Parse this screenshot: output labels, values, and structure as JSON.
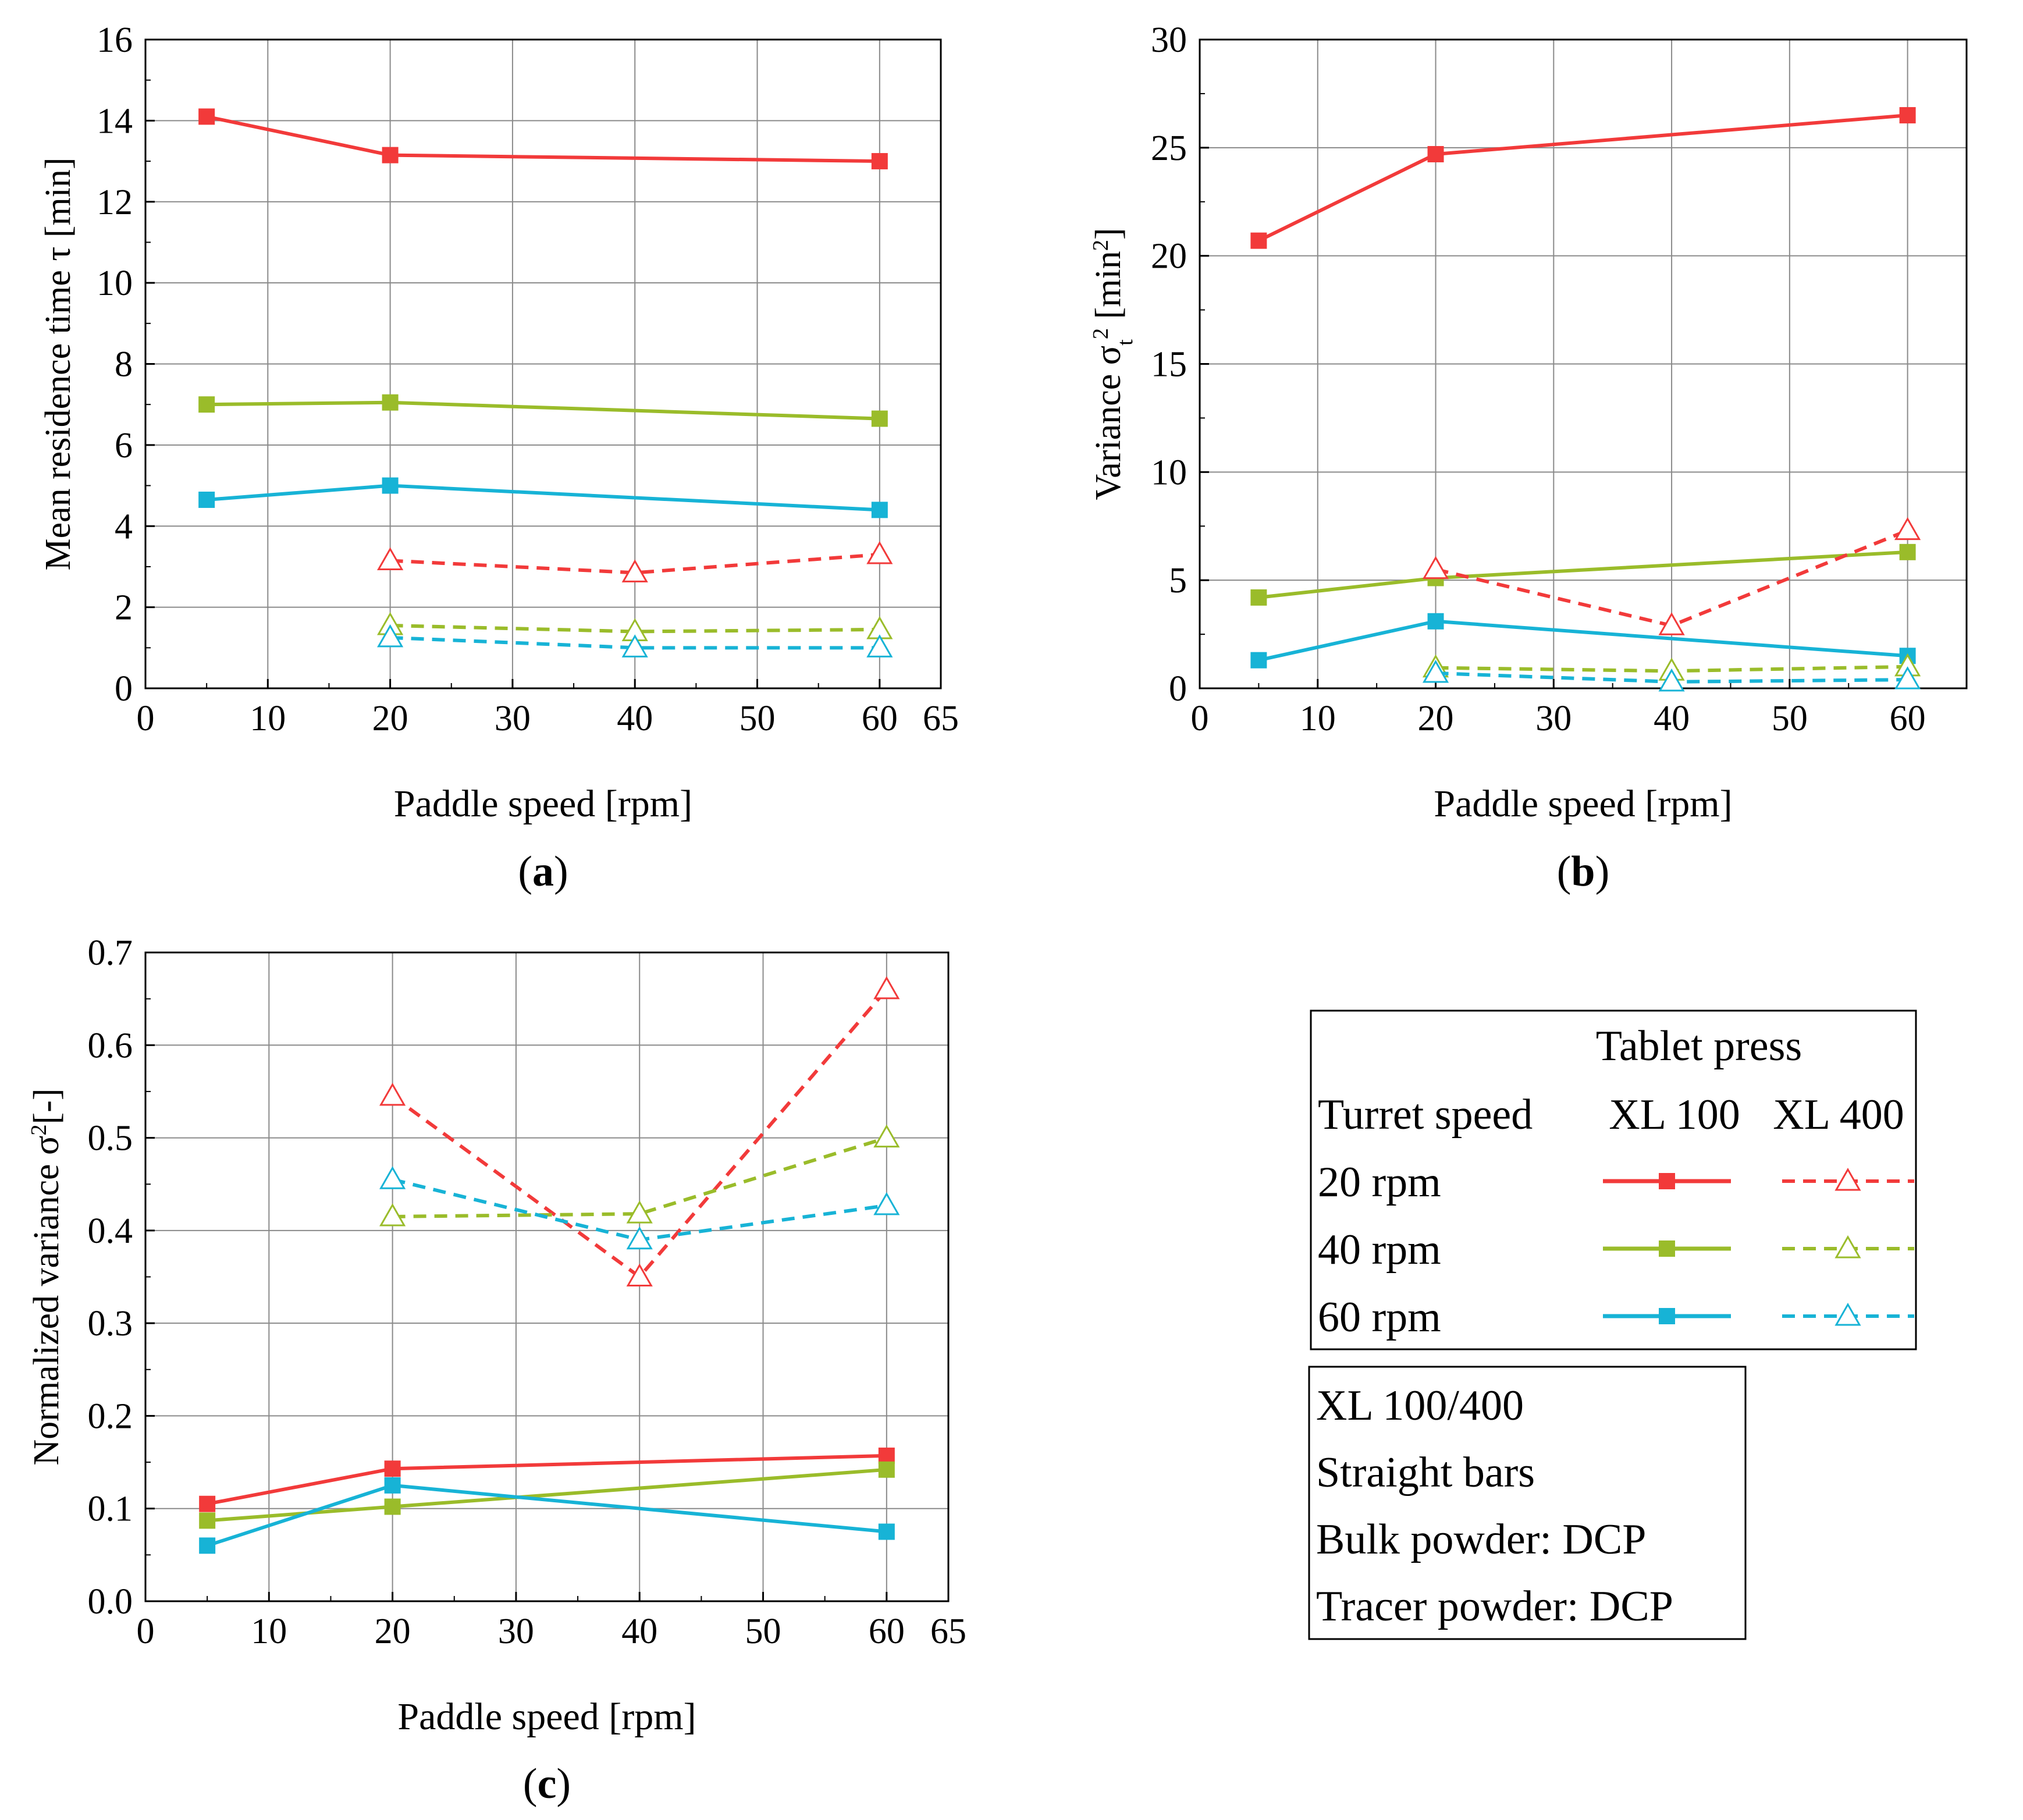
{
  "chart_data": [
    {
      "id": "a",
      "type": "line",
      "panel_label": "a",
      "xlabel": "Paddle speed [rpm]",
      "ylabel": "Mean residence time τ [min]",
      "xlim": [
        0,
        65
      ],
      "ylim": [
        0,
        16
      ],
      "xticks": [
        0,
        10,
        20,
        30,
        40,
        50,
        60,
        65
      ],
      "yticks": [
        0,
        2,
        4,
        6,
        8,
        10,
        12,
        14,
        16
      ],
      "ytick_decimals": 0,
      "grid": true,
      "series": [
        {
          "name": "20 rpm XL 100",
          "press": "XL 100",
          "turret": "20 rpm",
          "color": "#f23a3a",
          "dash": false,
          "marker": "square",
          "x": [
            5,
            20,
            60
          ],
          "y": [
            14.1,
            13.15,
            13.0
          ]
        },
        {
          "name": "40 rpm XL 100",
          "press": "XL 100",
          "turret": "40 rpm",
          "color": "#9abc2a",
          "dash": false,
          "marker": "square",
          "x": [
            5,
            20,
            60
          ],
          "y": [
            7.0,
            7.05,
            6.65
          ]
        },
        {
          "name": "60 rpm XL 100",
          "press": "XL 100",
          "turret": "60 rpm",
          "color": "#17b3d6",
          "dash": false,
          "marker": "square",
          "x": [
            5,
            20,
            60
          ],
          "y": [
            4.65,
            5.0,
            4.4
          ]
        },
        {
          "name": "20 rpm XL 400",
          "press": "XL 400",
          "turret": "20 rpm",
          "color": "#f23a3a",
          "dash": true,
          "marker": "triangle",
          "x": [
            20,
            40,
            60
          ],
          "y": [
            3.15,
            2.85,
            3.3
          ]
        },
        {
          "name": "40 rpm XL 400",
          "press": "XL 400",
          "turret": "40 rpm",
          "color": "#9abc2a",
          "dash": true,
          "marker": "triangle",
          "x": [
            20,
            40,
            60
          ],
          "y": [
            1.55,
            1.4,
            1.45
          ]
        },
        {
          "name": "60 rpm XL 400",
          "press": "XL 400",
          "turret": "60 rpm",
          "color": "#17b3d6",
          "dash": true,
          "marker": "triangle",
          "x": [
            20,
            40,
            60
          ],
          "y": [
            1.25,
            1.0,
            1.0
          ]
        }
      ]
    },
    {
      "id": "b",
      "type": "line",
      "panel_label": "b",
      "xlabel": "Paddle speed [rpm]",
      "ylabel": "Variance σt2 [min2]",
      "xlim": [
        0,
        65
      ],
      "ylim": [
        0,
        30
      ],
      "xticks": [
        0,
        10,
        20,
        30,
        40,
        50,
        60
      ],
      "yticks": [
        0,
        5,
        10,
        15,
        20,
        25,
        30
      ],
      "ytick_decimals": 0,
      "grid": true,
      "series": [
        {
          "name": "20 rpm XL 100",
          "press": "XL 100",
          "turret": "20 rpm",
          "color": "#f23a3a",
          "dash": false,
          "marker": "square",
          "x": [
            5,
            20,
            60
          ],
          "y": [
            20.7,
            24.7,
            26.5
          ]
        },
        {
          "name": "40 rpm XL 100",
          "press": "XL 100",
          "turret": "40 rpm",
          "color": "#9abc2a",
          "dash": false,
          "marker": "square",
          "x": [
            5,
            20,
            60
          ],
          "y": [
            4.2,
            5.1,
            6.3
          ]
        },
        {
          "name": "60 rpm XL 100",
          "press": "XL 100",
          "turret": "60 rpm",
          "color": "#17b3d6",
          "dash": false,
          "marker": "square",
          "x": [
            5,
            20,
            60
          ],
          "y": [
            1.3,
            3.1,
            1.5
          ]
        },
        {
          "name": "20 rpm XL 400",
          "press": "XL 400",
          "turret": "20 rpm",
          "color": "#f23a3a",
          "dash": true,
          "marker": "triangle",
          "x": [
            20,
            40,
            60
          ],
          "y": [
            5.5,
            2.9,
            7.3
          ]
        },
        {
          "name": "40 rpm XL 400",
          "press": "XL 400",
          "turret": "40 rpm",
          "color": "#9abc2a",
          "dash": true,
          "marker": "triangle",
          "x": [
            20,
            40,
            60
          ],
          "y": [
            0.95,
            0.8,
            1.0
          ]
        },
        {
          "name": "60 rpm XL 400",
          "press": "XL 400",
          "turret": "60 rpm",
          "color": "#17b3d6",
          "dash": true,
          "marker": "triangle",
          "x": [
            20,
            40,
            60
          ],
          "y": [
            0.7,
            0.3,
            0.4
          ]
        }
      ]
    },
    {
      "id": "c",
      "type": "line",
      "panel_label": "c",
      "xlabel": "Paddle speed [rpm]",
      "ylabel": "Normalized variance σ2[-]",
      "xlim": [
        0,
        65
      ],
      "ylim": [
        0,
        0.7
      ],
      "xticks": [
        0,
        10,
        20,
        30,
        40,
        50,
        60,
        65
      ],
      "yticks": [
        0.0,
        0.1,
        0.2,
        0.3,
        0.4,
        0.5,
        0.6,
        0.7
      ],
      "ytick_decimals": 1,
      "grid": true,
      "series": [
        {
          "name": "20 rpm XL 100",
          "press": "XL 100",
          "turret": "20 rpm",
          "color": "#f23a3a",
          "dash": false,
          "marker": "square",
          "x": [
            5,
            20,
            60
          ],
          "y": [
            0.105,
            0.143,
            0.157
          ]
        },
        {
          "name": "40 rpm XL 100",
          "press": "XL 100",
          "turret": "40 rpm",
          "color": "#9abc2a",
          "dash": false,
          "marker": "square",
          "x": [
            5,
            20,
            60
          ],
          "y": [
            0.087,
            0.102,
            0.142
          ]
        },
        {
          "name": "60 rpm XL 100",
          "press": "XL 100",
          "turret": "60 rpm",
          "color": "#17b3d6",
          "dash": false,
          "marker": "square",
          "x": [
            5,
            20,
            60
          ],
          "y": [
            0.06,
            0.125,
            0.075
          ]
        },
        {
          "name": "20 rpm XL 400",
          "press": "XL 400",
          "turret": "20 rpm",
          "color": "#f23a3a",
          "dash": true,
          "marker": "triangle",
          "x": [
            20,
            40,
            60
          ],
          "y": [
            0.545,
            0.35,
            0.66
          ]
        },
        {
          "name": "40 rpm XL 400",
          "press": "XL 400",
          "turret": "40 rpm",
          "color": "#9abc2a",
          "dash": true,
          "marker": "triangle",
          "x": [
            20,
            40,
            60
          ],
          "y": [
            0.415,
            0.418,
            0.5
          ]
        },
        {
          "name": "60 rpm XL 400",
          "press": "XL 400",
          "turret": "60 rpm",
          "color": "#17b3d6",
          "dash": true,
          "marker": "triangle",
          "x": [
            20,
            40,
            60
          ],
          "y": [
            0.455,
            0.39,
            0.427
          ]
        }
      ]
    }
  ],
  "legend": {
    "title": "Tablet press",
    "header_left": "Turret speed",
    "header_col1": "XL 100",
    "header_col2": "XL 400",
    "rows": [
      {
        "label": "20 rpm",
        "color": "#f23a3a"
      },
      {
        "label": "40 rpm",
        "color": "#9abc2a"
      },
      {
        "label": "60 rpm",
        "color": "#17b3d6"
      }
    ]
  },
  "info_box": {
    "lines": [
      "XL 100/400",
      "Straight bars",
      "Bulk powder: DCP",
      "Tracer powder: DCP"
    ]
  }
}
